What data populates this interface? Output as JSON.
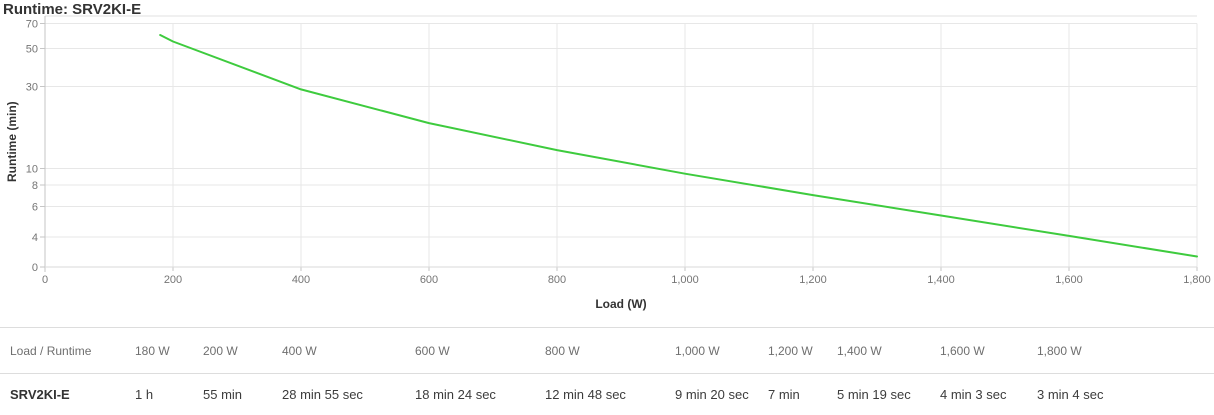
{
  "chart": {
    "title": "Runtime: SRV2KI-E",
    "y_axis_title": "Runtime (min)",
    "x_axis_title": "Load (W)",
    "y_tick_values": [
      70,
      50,
      30,
      10,
      8,
      6,
      4
    ],
    "y_tick_labels": [
      "70",
      "50",
      "30",
      "10",
      "8",
      "6",
      "4"
    ],
    "y_bottom_label": "0",
    "x_tick_values": [
      0,
      200,
      400,
      600,
      800,
      1000,
      1200,
      1400,
      1600,
      1800
    ],
    "x_tick_labels": [
      "0",
      "200",
      "400",
      "600",
      "800",
      "1,000",
      "1,200",
      "1,400",
      "1,600",
      "1,800"
    ],
    "colors": {
      "series_line": "#3ecb3e",
      "grid": "#e7e7e7",
      "plot_border": "#e0e0e0",
      "axis_line": "#c6c6c6",
      "bottom_axis": "#d9d9d9",
      "tick_label": "#757575",
      "title_text": "#333333"
    }
  },
  "chart_data": {
    "type": "line",
    "title": "Runtime: SRV2KI-E",
    "xlabel": "Load (W)",
    "ylabel": "Runtime (min)",
    "y_scale": "log",
    "xlim": [
      0,
      1800
    ],
    "x_tick_step": 200,
    "y_ticks_shown": [
      70,
      50,
      30,
      10,
      8,
      6,
      4,
      0
    ],
    "grid": true,
    "legend": false,
    "series": [
      {
        "name": "SRV2KI-E",
        "color": "#3ecb3e",
        "x_watts": [
          180,
          200,
          400,
          600,
          800,
          1000,
          1200,
          1400,
          1600,
          1800
        ],
        "runtime_minutes": [
          60,
          55,
          28.92,
          18.4,
          12.8,
          9.33,
          7,
          5.32,
          4.05,
          3.07
        ]
      }
    ]
  },
  "table": {
    "header": [
      "Load / Runtime",
      "180 W",
      "200 W",
      "400 W",
      "600 W",
      "800 W",
      "1,000 W",
      "1,200 W",
      "1,400 W",
      "1,600 W",
      "1,800 W"
    ],
    "rows": [
      [
        "SRV2KI-E",
        "1 h",
        "55 min",
        "28 min 55 sec",
        "18 min 24 sec",
        "12 min 48 sec",
        "9 min 20 sec",
        "7 min",
        "5 min 19 sec",
        "4 min 3 sec",
        "3 min 4 sec"
      ]
    ]
  }
}
